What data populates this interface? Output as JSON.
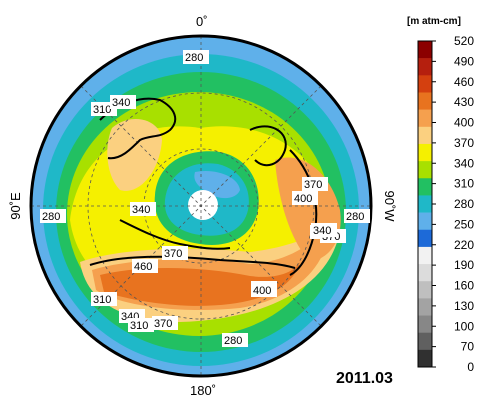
{
  "map": {
    "projection": "north polar stereographic",
    "longitude_labels": {
      "top": "0˚",
      "bottom": "180˚",
      "left": "90˚E",
      "right": "90˚W"
    },
    "date": "2011.03",
    "contour_labels": [
      "280",
      "310",
      "340",
      "370",
      "400",
      "340",
      "340",
      "280",
      "370",
      "400",
      "280",
      "340",
      "370",
      "460",
      "400",
      "310",
      "340",
      "310",
      "370",
      "280"
    ]
  },
  "colorbar": {
    "unit": "[m atm-cm]",
    "ticks": [
      "520",
      "490",
      "460",
      "430",
      "400",
      "370",
      "340",
      "310",
      "280",
      "250",
      "220",
      "190",
      "160",
      "130",
      "100",
      "70",
      "0"
    ],
    "bands": [
      "#8b0000",
      "#b51f0e",
      "#d4400f",
      "#e8731f",
      "#f5a04e",
      "#fbd080",
      "#f5f000",
      "#a8e000",
      "#22c062",
      "#1fb8c8",
      "#5fb0ea",
      "#1d6ad8",
      "#f2f2f2",
      "#dcdcdc",
      "#bfbfbf",
      "#a3a3a3",
      "#878787",
      "#606060",
      "#303030"
    ]
  }
}
